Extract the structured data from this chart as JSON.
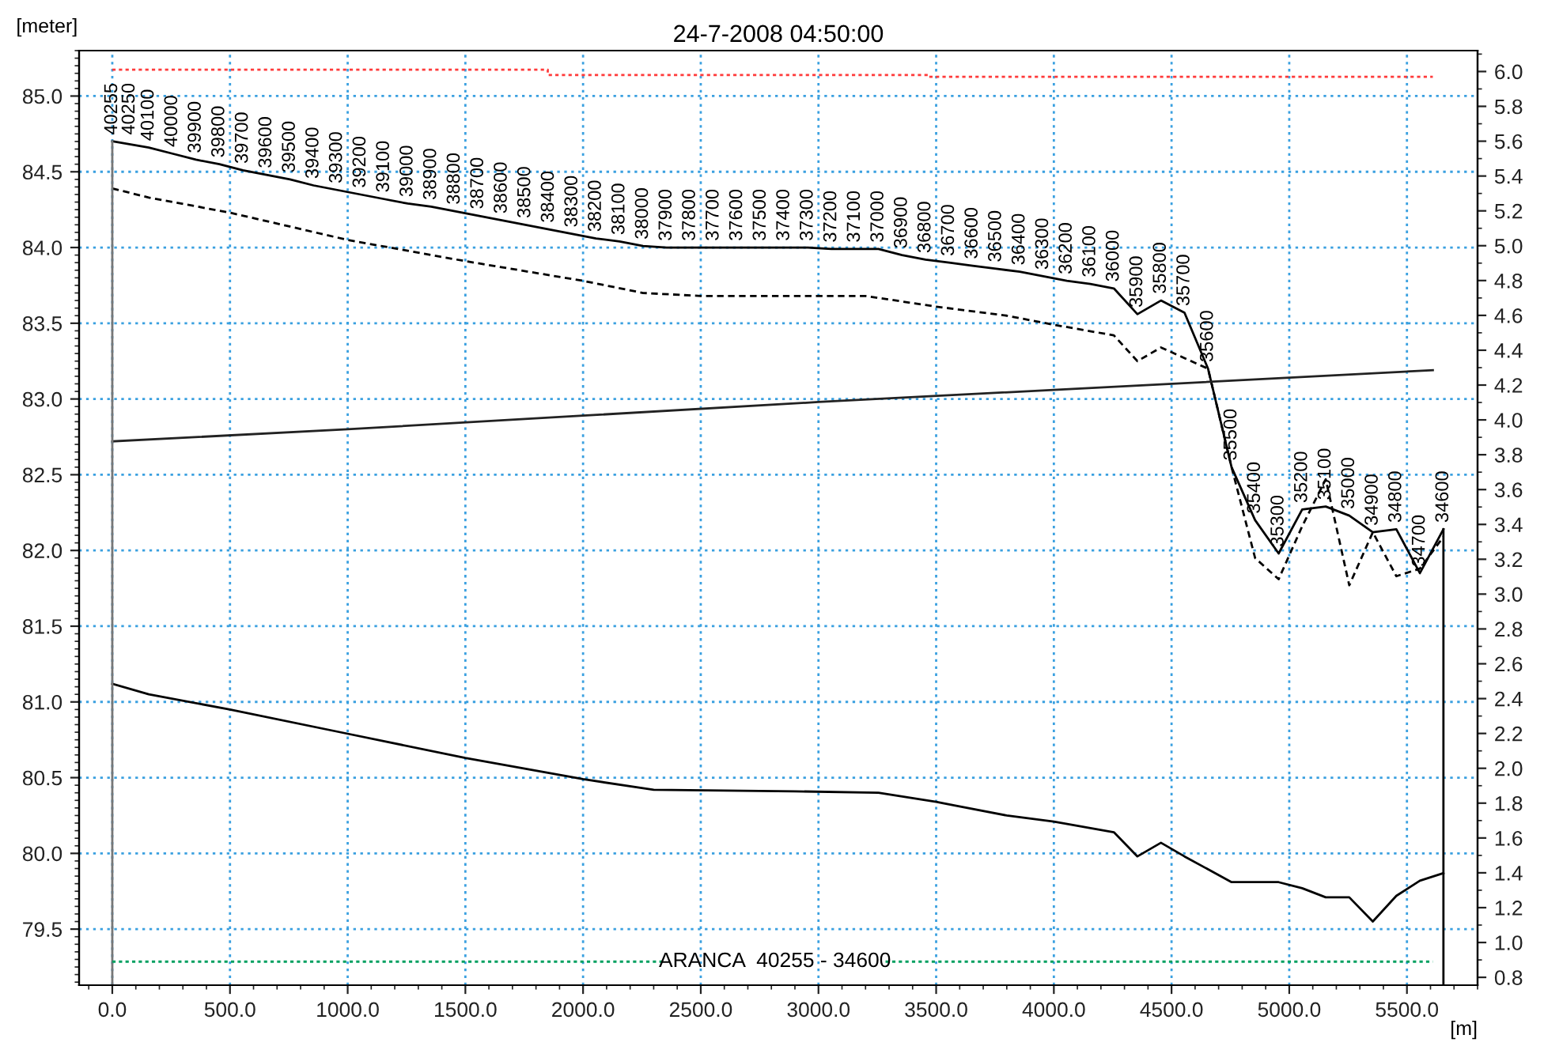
{
  "chart_data": {
    "type": "line",
    "title": "24-7-2008 04:50:00",
    "xlabel": "[m]",
    "ylabel": "[meter]",
    "xlim": [
      -141,
      5800
    ],
    "ylim": [
      79.13,
      85.3
    ],
    "y2lim": [
      0.755,
      6.12
    ],
    "xticks": [
      {
        "value": 0,
        "label": "0.0"
      },
      {
        "value": 500,
        "label": "500.0"
      },
      {
        "value": 1000,
        "label": "1000.0"
      },
      {
        "value": 1500,
        "label": "1500.0"
      },
      {
        "value": 2000,
        "label": "2000.0"
      },
      {
        "value": 2500,
        "label": "2500.0"
      },
      {
        "value": 3000,
        "label": "3000.0"
      },
      {
        "value": 3500,
        "label": "3500.0"
      },
      {
        "value": 4000,
        "label": "4000.0"
      },
      {
        "value": 4500,
        "label": "4500.0"
      },
      {
        "value": 5000,
        "label": "5000.0"
      },
      {
        "value": 5500,
        "label": "5500.0"
      }
    ],
    "yticks": [
      {
        "value": 79.5,
        "label": "79.5"
      },
      {
        "value": 80,
        "label": "80.0"
      },
      {
        "value": 80.5,
        "label": "80.5"
      },
      {
        "value": 81,
        "label": "81.0"
      },
      {
        "value": 81.5,
        "label": "81.5"
      },
      {
        "value": 82,
        "label": "82.0"
      },
      {
        "value": 82.5,
        "label": "82.5"
      },
      {
        "value": 83,
        "label": "83.0"
      },
      {
        "value": 83.5,
        "label": "83.5"
      },
      {
        "value": 84,
        "label": "84.0"
      },
      {
        "value": 84.5,
        "label": "84.5"
      },
      {
        "value": 85,
        "label": "85.0"
      }
    ],
    "y2ticks": [
      {
        "value": 0.8,
        "label": "0.8"
      },
      {
        "value": 1,
        "label": "1.0"
      },
      {
        "value": 1.2,
        "label": "1.2"
      },
      {
        "value": 1.4,
        "label": "1.4"
      },
      {
        "value": 1.6,
        "label": "1.6"
      },
      {
        "value": 1.8,
        "label": "1.8"
      },
      {
        "value": 2,
        "label": "2.0"
      },
      {
        "value": 2.2,
        "label": "2.2"
      },
      {
        "value": 2.4,
        "label": "2.4"
      },
      {
        "value": 2.6,
        "label": "2.6"
      },
      {
        "value": 2.8,
        "label": "2.8"
      },
      {
        "value": 3,
        "label": "3.0"
      },
      {
        "value": 3.2,
        "label": "3.2"
      },
      {
        "value": 3.4,
        "label": "3.4"
      },
      {
        "value": 3.6,
        "label": "3.6"
      },
      {
        "value": 3.8,
        "label": "3.8"
      },
      {
        "value": 4,
        "label": "4.0"
      },
      {
        "value": 4.2,
        "label": "4.2"
      },
      {
        "value": 4.4,
        "label": "4.4"
      },
      {
        "value": 4.6,
        "label": "4.6"
      },
      {
        "value": 4.8,
        "label": "4.8"
      },
      {
        "value": 5,
        "label": "5.0"
      },
      {
        "value": 5.2,
        "label": "5.2"
      },
      {
        "value": 5.4,
        "label": "5.4"
      },
      {
        "value": 5.6,
        "label": "5.6"
      },
      {
        "value": 5.8,
        "label": "5.8"
      },
      {
        "value": 6,
        "label": "6.0"
      }
    ],
    "grid": true,
    "x": [
      0,
      5,
      155,
      255,
      355,
      455,
      555,
      655,
      755,
      855,
      955,
      1055,
      1155,
      1255,
      1355,
      1455,
      1555,
      1655,
      1755,
      1855,
      1955,
      2055,
      2155,
      2255,
      2355,
      2455,
      2555,
      2655,
      2755,
      2855,
      2955,
      3055,
      3155,
      3255,
      3355,
      3455,
      3555,
      3655,
      3755,
      3855,
      3955,
      4055,
      4155,
      4255,
      4355,
      4455,
      4555,
      4655,
      4755,
      4855,
      4955,
      5055,
      5155,
      5255,
      5355,
      5455,
      5555,
      5655
    ],
    "series": [
      {
        "color": "#000000",
        "line_style": "solid",
        "values": [
          84.7,
          84.7,
          84.66,
          84.62,
          84.58,
          84.55,
          84.51,
          84.48,
          84.45,
          84.41,
          84.38,
          84.35,
          84.32,
          84.29,
          84.27,
          84.24,
          84.21,
          84.18,
          84.15,
          84.12,
          84.09,
          84.06,
          84.04,
          84.01,
          84.0,
          84.0,
          84.0,
          84.0,
          84.0,
          84.0,
          84.0,
          83.99,
          83.99,
          83.99,
          83.95,
          83.92,
          83.9,
          83.88,
          83.86,
          83.84,
          83.81,
          83.78,
          83.76,
          83.73,
          83.56,
          83.65,
          83.57,
          83.2,
          82.55,
          82.2,
          81.98,
          82.27,
          82.29,
          82.23,
          82.12,
          82.14,
          81.85,
          82.14
        ]
      },
      {
        "color": "#000000",
        "line_style": "dashed",
        "x": [
          0,
          155,
          500,
          1000,
          1500,
          2000,
          2255,
          2500,
          3200,
          3500,
          3800,
          4000,
          4255,
          4355,
          4455,
          4555,
          4655,
          4755,
          4855,
          4955,
          5055,
          5155,
          5255,
          5355,
          5455,
          5555,
          5655
        ],
        "values": [
          84.39,
          84.33,
          84.23,
          84.05,
          83.91,
          83.78,
          83.7,
          83.68,
          83.68,
          83.61,
          83.55,
          83.49,
          83.42,
          83.25,
          83.34,
          83.27,
          83.2,
          82.55,
          81.95,
          81.81,
          82.16,
          82.47,
          81.77,
          82.12,
          81.83,
          81.88,
          82.09
        ]
      },
      {
        "color": "#000000",
        "line_style": "solid",
        "x": [
          0,
          155,
          500,
          1000,
          1500,
          2000,
          2255,
          2300,
          2900,
          3255,
          3500,
          3800,
          4000,
          4255,
          4355,
          4455,
          4555,
          4755,
          4955,
          5055,
          5155,
          5255,
          5355,
          5455,
          5555,
          5655
        ],
        "values": [
          81.12,
          81.05,
          80.95,
          80.79,
          80.63,
          80.49,
          80.43,
          80.42,
          80.41,
          80.4,
          80.34,
          80.25,
          80.21,
          80.14,
          79.98,
          80.07,
          79.98,
          79.81,
          79.81,
          79.77,
          79.71,
          79.71,
          79.55,
          79.72,
          79.82,
          79.87
        ]
      },
      {
        "color": "#222222",
        "line_style": "solid",
        "x": [
          0,
          1000,
          2000,
          3000,
          4000,
          5610
        ],
        "values": [
          82.72,
          82.8,
          82.89,
          82.98,
          83.06,
          83.19
        ]
      },
      {
        "color": "#777777",
        "line_style": "solid",
        "x": [
          0,
          0
        ],
        "values": [
          84.7,
          79.13
        ]
      },
      {
        "color": "#000000",
        "line_style": "solid",
        "x": [
          5655,
          5655
        ],
        "values": [
          82.14,
          79.13
        ]
      },
      {
        "color": "#ff3b3b",
        "line_style": "dotted",
        "axis": "y2",
        "x": [
          0,
          1850,
          1850,
          3470,
          3470,
          5610
        ],
        "values": [
          6.01,
          6.01,
          5.98,
          5.98,
          5.97,
          5.97
        ]
      },
      {
        "name": "ARANCA  40255 - 34600",
        "color": "#00a060",
        "line_style": "dotted",
        "axis": "y2",
        "x": [
          0,
          2345,
          2815,
          3285,
          5610
        ],
        "values": [
          0.89,
          0.89,
          null,
          0.89,
          0.89
        ]
      }
    ],
    "annotations": [
      {
        "text": "40255",
        "x": 0,
        "y": 84.7
      },
      {
        "text": "40250",
        "x": 5,
        "y": 84.7
      },
      {
        "text": "40100",
        "x": 155,
        "y": 84.66
      },
      {
        "text": "40000",
        "x": 255,
        "y": 84.62
      },
      {
        "text": "39900",
        "x": 355,
        "y": 84.58
      },
      {
        "text": "39800",
        "x": 455,
        "y": 84.55
      },
      {
        "text": "39700",
        "x": 555,
        "y": 84.51
      },
      {
        "text": "39600",
        "x": 655,
        "y": 84.48
      },
      {
        "text": "39500",
        "x": 755,
        "y": 84.45
      },
      {
        "text": "39400",
        "x": 855,
        "y": 84.41
      },
      {
        "text": "39300",
        "x": 955,
        "y": 84.38
      },
      {
        "text": "39200",
        "x": 1055,
        "y": 84.35
      },
      {
        "text": "39100",
        "x": 1155,
        "y": 84.32
      },
      {
        "text": "39000",
        "x": 1255,
        "y": 84.29
      },
      {
        "text": "38900",
        "x": 1355,
        "y": 84.27
      },
      {
        "text": "38800",
        "x": 1455,
        "y": 84.24
      },
      {
        "text": "38700",
        "x": 1555,
        "y": 84.21
      },
      {
        "text": "38600",
        "x": 1655,
        "y": 84.18
      },
      {
        "text": "38500",
        "x": 1755,
        "y": 84.15
      },
      {
        "text": "38400",
        "x": 1855,
        "y": 84.12
      },
      {
        "text": "38300",
        "x": 1955,
        "y": 84.09
      },
      {
        "text": "38200",
        "x": 2055,
        "y": 84.06
      },
      {
        "text": "38100",
        "x": 2155,
        "y": 84.04
      },
      {
        "text": "38000",
        "x": 2255,
        "y": 84.01
      },
      {
        "text": "37900",
        "x": 2355,
        "y": 84.0
      },
      {
        "text": "37800",
        "x": 2455,
        "y": 84.0
      },
      {
        "text": "37700",
        "x": 2555,
        "y": 84.0
      },
      {
        "text": "37600",
        "x": 2655,
        "y": 84.0
      },
      {
        "text": "37500",
        "x": 2755,
        "y": 84.0
      },
      {
        "text": "37400",
        "x": 2855,
        "y": 84.0
      },
      {
        "text": "37300",
        "x": 2955,
        "y": 84.0
      },
      {
        "text": "37200",
        "x": 3055,
        "y": 83.99
      },
      {
        "text": "37100",
        "x": 3155,
        "y": 83.99
      },
      {
        "text": "37000",
        "x": 3255,
        "y": 83.99
      },
      {
        "text": "36900",
        "x": 3355,
        "y": 83.95
      },
      {
        "text": "36800",
        "x": 3455,
        "y": 83.92
      },
      {
        "text": "36700",
        "x": 3555,
        "y": 83.9
      },
      {
        "text": "36600",
        "x": 3655,
        "y": 83.88
      },
      {
        "text": "36500",
        "x": 3755,
        "y": 83.86
      },
      {
        "text": "36400",
        "x": 3855,
        "y": 83.84
      },
      {
        "text": "36300",
        "x": 3955,
        "y": 83.81
      },
      {
        "text": "36200",
        "x": 4055,
        "y": 83.78
      },
      {
        "text": "36100",
        "x": 4155,
        "y": 83.76
      },
      {
        "text": "36000",
        "x": 4255,
        "y": 83.73
      },
      {
        "text": "35900",
        "x": 4355,
        "y": 83.56
      },
      {
        "text": "35800",
        "x": 4455,
        "y": 83.65
      },
      {
        "text": "35700",
        "x": 4555,
        "y": 83.57
      },
      {
        "text": "35600",
        "x": 4655,
        "y": 83.2
      },
      {
        "text": "35500",
        "x": 4755,
        "y": 82.55
      },
      {
        "text": "35400",
        "x": 4855,
        "y": 82.2
      },
      {
        "text": "35300",
        "x": 4955,
        "y": 81.98
      },
      {
        "text": "35200",
        "x": 5055,
        "y": 82.27
      },
      {
        "text": "35100",
        "x": 5155,
        "y": 82.29
      },
      {
        "text": "35000",
        "x": 5255,
        "y": 82.23
      },
      {
        "text": "34900",
        "x": 5355,
        "y": 82.12
      },
      {
        "text": "34800",
        "x": 5455,
        "y": 82.14
      },
      {
        "text": "34700",
        "x": 5555,
        "y": 81.85
      },
      {
        "text": "34600",
        "x": 5655,
        "y": 82.14
      }
    ]
  }
}
